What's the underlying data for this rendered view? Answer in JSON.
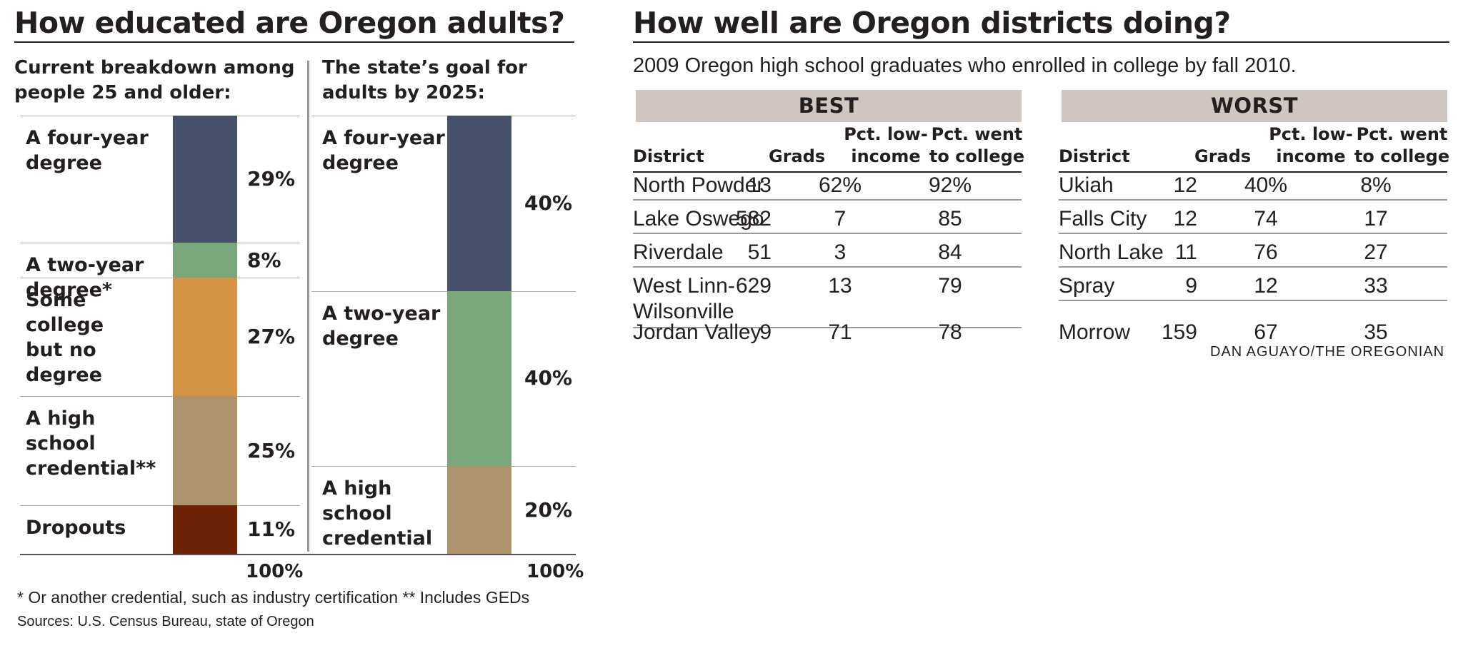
{
  "left_panel": {
    "title": "How educated are Oregon adults?",
    "current_header": [
      "Current breakdown among",
      "people 25 and older:"
    ],
    "goal_header": [
      "The state’s goal for",
      "adults by 2025:"
    ],
    "total_label": "100%",
    "footnote": "* Or another credential, such as industry certification  ** Includes GEDs",
    "sources": "Sources: U.S. Census Bureau, state of Oregon"
  },
  "chart_data": [
    {
      "type": "bar",
      "stacked": true,
      "title": "Current breakdown among people 25 and older:",
      "categories": [
        {
          "label": [
            "A four-year",
            "degree"
          ],
          "value": 29,
          "value_label": "29%",
          "color": "#46506b"
        },
        {
          "label": [
            "A two-year",
            "degree*"
          ],
          "value": 8,
          "value_label": "8%",
          "color": "#7ba87b"
        },
        {
          "label": [
            "Some college",
            "but no degree"
          ],
          "value": 27,
          "value_label": "27%",
          "color": "#d39244"
        },
        {
          "label": [
            "A high school",
            "credential**"
          ],
          "value": 25,
          "value_label": "25%",
          "color": "#ad926c"
        },
        {
          "label": [
            "Dropouts"
          ],
          "value": 11,
          "value_label": "11%",
          "color": "#6e2205"
        }
      ],
      "total": "100%"
    },
    {
      "type": "bar",
      "stacked": true,
      "title": "The state’s goal for adults by 2025:",
      "categories": [
        {
          "label": [
            "A four-year",
            "degree"
          ],
          "value": 40,
          "value_label": "40%",
          "color": "#46506b"
        },
        {
          "label": [
            "A two-year",
            "degree"
          ],
          "value": 40,
          "value_label": "40%",
          "color": "#7ba87b"
        },
        {
          "label": [
            "A high",
            "school",
            "credential"
          ],
          "value": 20,
          "value_label": "20%",
          "color": "#ad926c"
        }
      ],
      "total": "100%"
    }
  ],
  "right_panel": {
    "title": "How well are Oregon districts doing?",
    "subtitle": "2009 Oregon high school graduates who enrolled in college by fall 2010.",
    "credit": "DAN AGUAYO/THE OREGONIAN",
    "columns": {
      "district": "District",
      "grads": "Grads",
      "low_income": [
        "Pct. low-",
        "income"
      ],
      "went": [
        "Pct. went",
        "to college"
      ]
    },
    "best": {
      "label": "BEST",
      "rows": [
        {
          "district": [
            "North Powder"
          ],
          "grads": "13",
          "low_income": "62%",
          "went": "92%"
        },
        {
          "district": [
            "Lake Oswego"
          ],
          "grads": "582",
          "low_income": "7",
          "went": "85"
        },
        {
          "district": [
            "Riverdale"
          ],
          "grads": "51",
          "low_income": "3",
          "went": "84"
        },
        {
          "district": [
            "West Linn-",
            "Wilsonville"
          ],
          "grads": "629",
          "low_income": "13",
          "went": "79"
        },
        {
          "district": [
            "Jordan Valley"
          ],
          "grads": "9",
          "low_income": "71",
          "went": "78"
        }
      ]
    },
    "worst": {
      "label": "WORST",
      "rows": [
        {
          "district": [
            "Ukiah"
          ],
          "grads": "12",
          "low_income": "40%",
          "went": "8%"
        },
        {
          "district": [
            "Falls City"
          ],
          "grads": "12",
          "low_income": "74",
          "went": "17"
        },
        {
          "district": [
            "North Lake"
          ],
          "grads": "11",
          "low_income": "76",
          "went": "27"
        },
        {
          "district": [
            "Spray"
          ],
          "grads": "9",
          "low_income": "12",
          "went": "33"
        },
        {
          "district": [
            "Morrow"
          ],
          "grads": "159",
          "low_income": "67",
          "went": "35"
        }
      ]
    }
  }
}
